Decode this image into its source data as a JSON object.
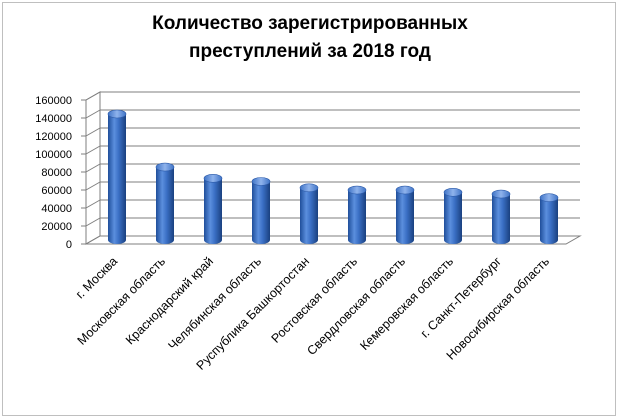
{
  "chart_data": {
    "type": "bar",
    "title_line1": "Количество зарегистрированных",
    "title_line2": "преступлений за 2018 год",
    "categories": [
      "г. Москва",
      "Московская область",
      "Краснодарский  край",
      "Челябинская область",
      "Руспублика Башкортостан",
      "Ростовская область",
      "Свердловская область",
      "Кемеровская область",
      "г. Санкт-Петербург",
      "Новосибирская область"
    ],
    "values": [
      140000,
      81000,
      68500,
      65000,
      58000,
      55500,
      55500,
      53000,
      51000,
      47000
    ],
    "ylim": [
      0,
      160000
    ],
    "yticks": [
      "0",
      "20000",
      "40000",
      "60000",
      "80000",
      "100000",
      "120000",
      "140000",
      "160000"
    ],
    "grid": true,
    "bar_color": "#3a6fc4",
    "legend": "none"
  }
}
